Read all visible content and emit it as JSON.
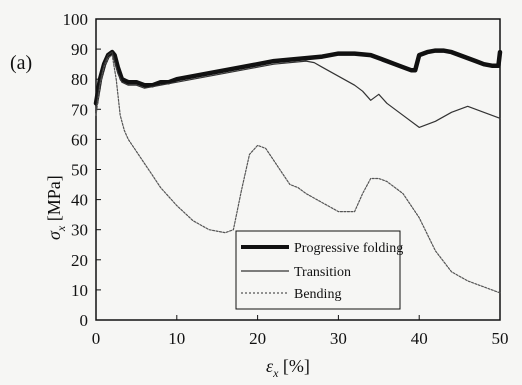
{
  "chart_data": {
    "type": "line",
    "panel_label": "(a)",
    "xlabel": "ε",
    "xlabel_sub": "x",
    "xlabel_unit": " [%]",
    "ylabel": "σ",
    "ylabel_sub": "x",
    "ylabel_unit": " [MPa]",
    "xlim": [
      0,
      50
    ],
    "ylim": [
      0,
      100
    ],
    "xticks": [
      0,
      10,
      20,
      30,
      40,
      50
    ],
    "yticks": [
      0,
      10,
      20,
      30,
      40,
      50,
      60,
      70,
      80,
      90,
      100
    ],
    "grid": false,
    "legend_position": "bottom-right",
    "series": [
      {
        "name": "Progressive folding",
        "style": "thick",
        "color": "#111111",
        "x": [
          0,
          0.5,
          1,
          1.5,
          2,
          2.3,
          2.7,
          3.2,
          4,
          5,
          6,
          7,
          8,
          9,
          10,
          12,
          14,
          16,
          18,
          20,
          22,
          24,
          26,
          28,
          30,
          32,
          34,
          36,
          37,
          38,
          39,
          39.5,
          40,
          41,
          42,
          43,
          44,
          45,
          46,
          47,
          48,
          49,
          49.8,
          50
        ],
        "y": [
          72,
          80,
          85,
          88,
          89,
          88,
          84,
          80,
          79,
          79,
          78,
          78,
          79,
          79,
          80,
          81,
          82,
          83,
          84,
          85,
          86,
          86.5,
          87,
          87.5,
          88.5,
          88.5,
          88,
          86,
          85,
          84,
          83,
          83,
          88,
          89,
          89.5,
          89.5,
          89,
          88,
          87,
          86,
          85,
          84.5,
          84.5,
          89
        ]
      },
      {
        "name": "Transition",
        "style": "thin",
        "color": "#333333",
        "x": [
          0,
          0.5,
          1,
          1.5,
          2,
          2.3,
          2.7,
          3.2,
          4,
          5,
          6,
          8,
          10,
          12,
          14,
          16,
          18,
          20,
          22,
          24,
          26,
          27,
          28,
          30,
          32,
          33,
          34,
          35,
          36,
          38,
          40,
          42,
          44,
          46,
          48,
          50
        ],
        "y": [
          70,
          79,
          85,
          88,
          89,
          86,
          82,
          79,
          78,
          78,
          77,
          78,
          79,
          80,
          81,
          82,
          83,
          84,
          85,
          85.5,
          86,
          85.5,
          84,
          81,
          78,
          76,
          73,
          75,
          72,
          68,
          64,
          66,
          69,
          71,
          69,
          67
        ]
      },
      {
        "name": "Bending",
        "style": "dotted",
        "color": "#555555",
        "x": [
          0,
          0.5,
          1,
          1.5,
          2,
          2.5,
          3,
          3.5,
          4,
          5,
          6,
          7,
          8,
          9,
          10,
          12,
          14,
          16,
          17,
          18,
          19,
          20,
          21,
          22,
          23,
          24,
          25,
          26,
          28,
          30,
          32,
          33,
          34,
          35,
          36,
          38,
          40,
          42,
          44,
          46,
          48,
          50
        ],
        "y": [
          68,
          78,
          84,
          87,
          88,
          80,
          68,
          63,
          60,
          56,
          52,
          48,
          44,
          41,
          38,
          33,
          30,
          29,
          30,
          43,
          55,
          58,
          57,
          53,
          49,
          45,
          44,
          42,
          39,
          36,
          36,
          42,
          47,
          47,
          46,
          42,
          34,
          23,
          16,
          13,
          11,
          9
        ]
      }
    ]
  }
}
